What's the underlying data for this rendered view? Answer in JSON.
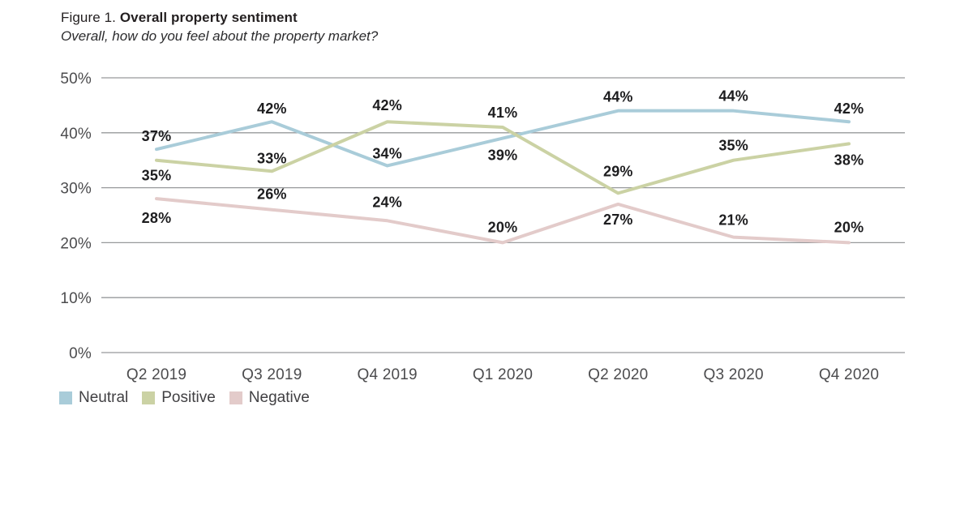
{
  "header": {
    "figure_label": "Figure 1.",
    "title": "Overall property sentiment",
    "subtitle": "Overall, how do you feel about the property market?"
  },
  "colors": {
    "neutral": "#a9ccd9",
    "positive": "#cbd2a4",
    "negative": "#e3cbca",
    "gridline": "#97999b",
    "axis_text": "#4c4c4e",
    "data_label": "#1d1d1f"
  },
  "legend": [
    {
      "label": "Neutral",
      "color": "#a9ccd9"
    },
    {
      "label": "Positive",
      "color": "#cbd2a4"
    },
    {
      "label": "Negative",
      "color": "#e3cbca"
    }
  ],
  "chart_data": {
    "type": "line",
    "title": "Figure 1. Overall property sentiment",
    "subtitle": "Overall, how do you feel about the property market?",
    "categories": [
      "Q2 2019",
      "Q3 2019",
      "Q4 2019",
      "Q1 2020",
      "Q2 2020",
      "Q3 2020",
      "Q4 2020"
    ],
    "series": [
      {
        "name": "Neutral",
        "color": "#a9ccd9",
        "values": [
          37,
          42,
          34,
          39,
          44,
          44,
          42
        ],
        "label_dy": [
          -10,
          -10,
          -9,
          27,
          -11,
          -12,
          -10
        ]
      },
      {
        "name": "Positive",
        "color": "#cbd2a4",
        "values": [
          35,
          33,
          42,
          41,
          29,
          35,
          38
        ],
        "label_dy": [
          25,
          -10,
          -14,
          -12,
          -21,
          -12,
          26
        ]
      },
      {
        "name": "Negative",
        "color": "#e3cbca",
        "values": [
          28,
          26,
          24,
          20,
          27,
          21,
          20
        ],
        "label_dy": [
          30,
          -13,
          -17,
          -13,
          25,
          -15,
          -13
        ]
      }
    ],
    "ylim": [
      0,
      50
    ],
    "ytick_step": 10,
    "ytick_labels": [
      "0%",
      "10%",
      "20%",
      "30%",
      "40%",
      "50%"
    ],
    "value_suffix": "%",
    "grid": true,
    "xlabel": "",
    "ylabel": "",
    "legend_position": "bottom-left"
  }
}
